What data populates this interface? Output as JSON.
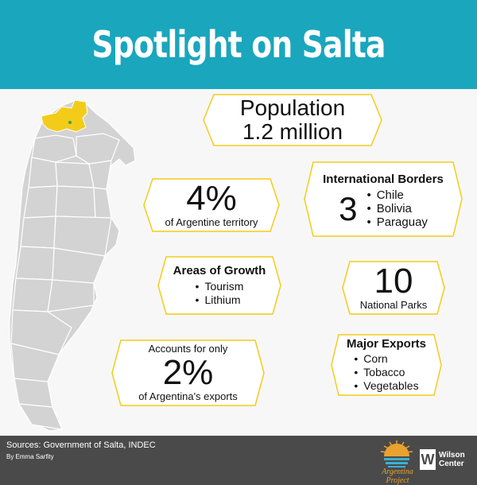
{
  "title": "Spotlight on Salta",
  "population": {
    "label": "Population",
    "value": "1.2 million"
  },
  "territory": {
    "value": "4%",
    "label": "of Argentine territory"
  },
  "borders": {
    "heading": "International Borders",
    "count": "3",
    "countries": [
      "Chile",
      "Bolivia",
      "Paraguay"
    ]
  },
  "growth": {
    "heading": "Areas of Growth",
    "items": [
      "Tourism",
      "Lithium"
    ]
  },
  "parks": {
    "value": "10",
    "label": "National Parks"
  },
  "exports_share": {
    "prefix": "Accounts for only",
    "value": "2%",
    "suffix": "of Argentina's exports"
  },
  "major_exports": {
    "heading": "Major Exports",
    "items": [
      "Corn",
      "Tobacco",
      "Vegetables"
    ]
  },
  "footer": {
    "sources": "Sources: Government of Salta, INDEC",
    "byline": "By Emma Sarfity",
    "argentina_project_line1": "Argentina",
    "argentina_project_line2": "Project",
    "wilson_line1": "Wilson",
    "wilson_line2": "Center",
    "wilson_mark": "W"
  },
  "colors": {
    "header": "#1aa6bd",
    "accent": "#f3cc1a",
    "map": "#d3d3d3",
    "footer": "#4a4a4a"
  },
  "icons": [
    "argentina-map",
    "hexagon-frame",
    "argentina-project-sun-logo",
    "wilson-center-logo"
  ]
}
